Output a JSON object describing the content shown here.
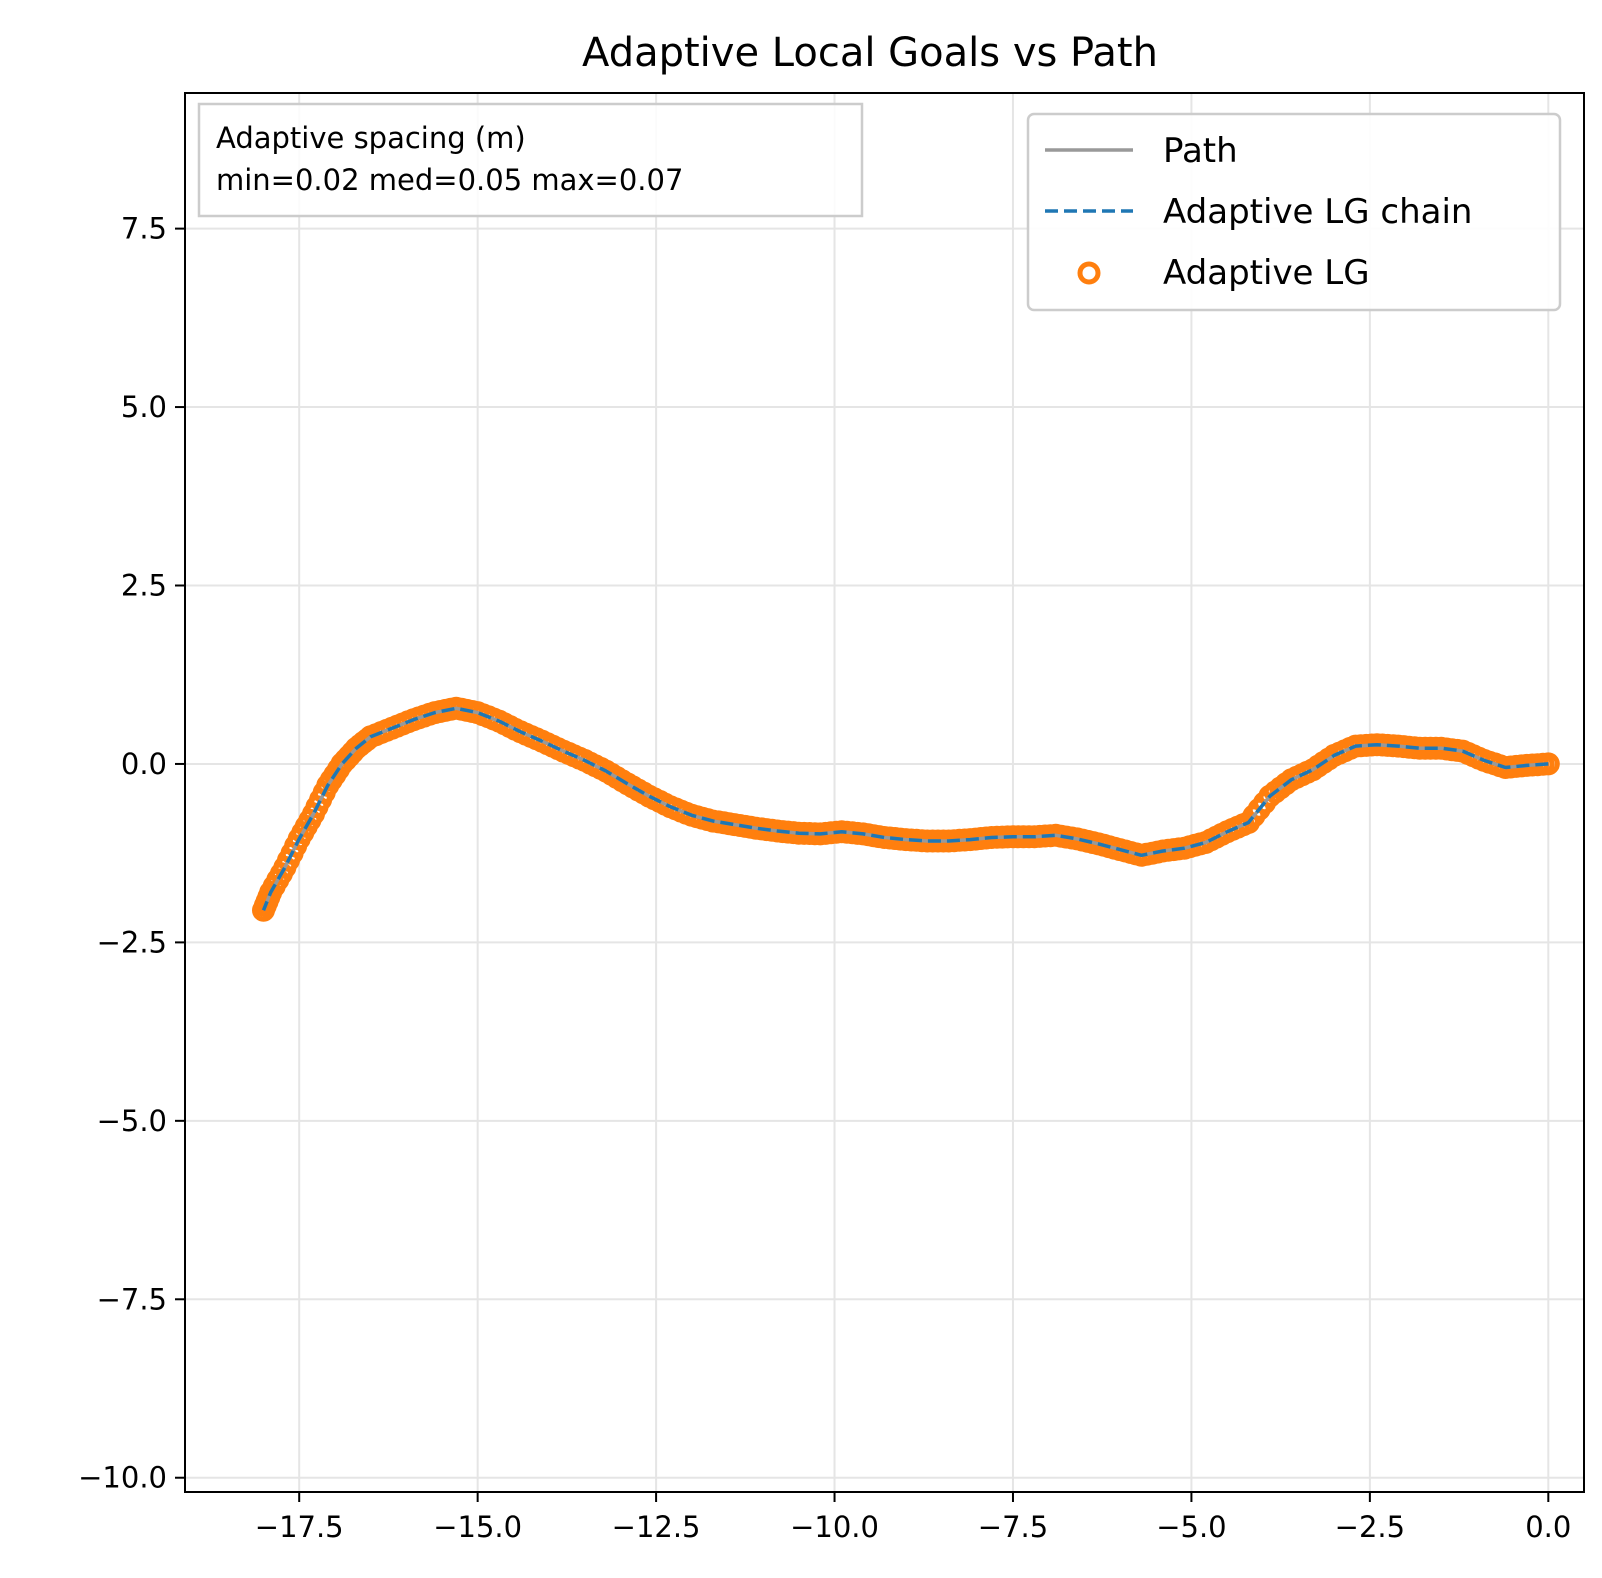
{
  "chart_data": {
    "type": "line",
    "title": "Adaptive Local Goals vs Path",
    "xlabel": "",
    "ylabel": "",
    "xlim": [
      -19.1,
      0.5
    ],
    "ylim": [
      -10.2,
      9.4
    ],
    "xticks": [
      -17.5,
      -15.0,
      -12.5,
      -10.0,
      -7.5,
      -5.0,
      -2.5,
      0.0
    ],
    "xtick_labels": [
      "−17.5",
      "−15.0",
      "−12.5",
      "−10.0",
      "−7.5",
      "−5.0",
      "−2.5",
      "0.0"
    ],
    "yticks": [
      -10.0,
      -7.5,
      -5.0,
      -2.5,
      0.0,
      2.5,
      5.0,
      7.5
    ],
    "ytick_labels": [
      "−10.0",
      "−7.5",
      "−5.0",
      "−2.5",
      "0.0",
      "2.5",
      "5.0",
      "7.5"
    ],
    "grid": true,
    "legend_position": "top-right",
    "annotation": {
      "line1": "Adaptive spacing (m)",
      "line2": "min=0.02  med=0.05  max=0.07"
    },
    "series": [
      {
        "name": "Path",
        "style": "solid",
        "color": "#999999"
      },
      {
        "name": "Adaptive LG chain",
        "style": "dashed",
        "color": "#1f77b4"
      },
      {
        "name": "Adaptive LG",
        "style": "markers",
        "color": "#ff7f0e"
      }
    ],
    "x": [
      0.0,
      -0.3,
      -0.6,
      -0.9,
      -1.2,
      -1.5,
      -1.8,
      -2.1,
      -2.4,
      -2.7,
      -3.0,
      -3.3,
      -3.6,
      -3.9,
      -4.2,
      -4.5,
      -4.8,
      -5.1,
      -5.4,
      -5.7,
      -6.0,
      -6.3,
      -6.6,
      -6.9,
      -7.2,
      -7.5,
      -7.8,
      -8.1,
      -8.4,
      -8.7,
      -9.0,
      -9.3,
      -9.6,
      -9.9,
      -10.2,
      -10.5,
      -10.8,
      -11.1,
      -11.4,
      -11.7,
      -12.0,
      -12.3,
      -12.6,
      -12.9,
      -13.2,
      -13.5,
      -13.8,
      -14.1,
      -14.4,
      -14.7,
      -15.0,
      -15.3,
      -15.6,
      -15.9,
      -16.2,
      -16.5,
      -16.7,
      -16.9,
      -17.1,
      -17.3,
      -17.5,
      -17.7,
      -17.9,
      -18.0
    ],
    "y": [
      0.0,
      -0.02,
      -0.05,
      0.05,
      0.18,
      0.22,
      0.22,
      0.25,
      0.27,
      0.25,
      0.12,
      -0.08,
      -0.22,
      -0.45,
      -0.82,
      -0.95,
      -1.1,
      -1.18,
      -1.22,
      -1.28,
      -1.2,
      -1.12,
      -1.05,
      -1.0,
      -1.02,
      -1.02,
      -1.03,
      -1.06,
      -1.08,
      -1.08,
      -1.06,
      -1.03,
      -0.98,
      -0.95,
      -0.98,
      -0.97,
      -0.94,
      -0.9,
      -0.85,
      -0.8,
      -0.72,
      -0.6,
      -0.45,
      -0.28,
      -0.1,
      0.05,
      0.18,
      0.32,
      0.45,
      0.6,
      0.72,
      0.78,
      0.72,
      0.62,
      0.5,
      0.38,
      0.22,
      0.0,
      -0.3,
      -0.7,
      -1.05,
      -1.45,
      -1.8,
      -2.05
    ]
  }
}
